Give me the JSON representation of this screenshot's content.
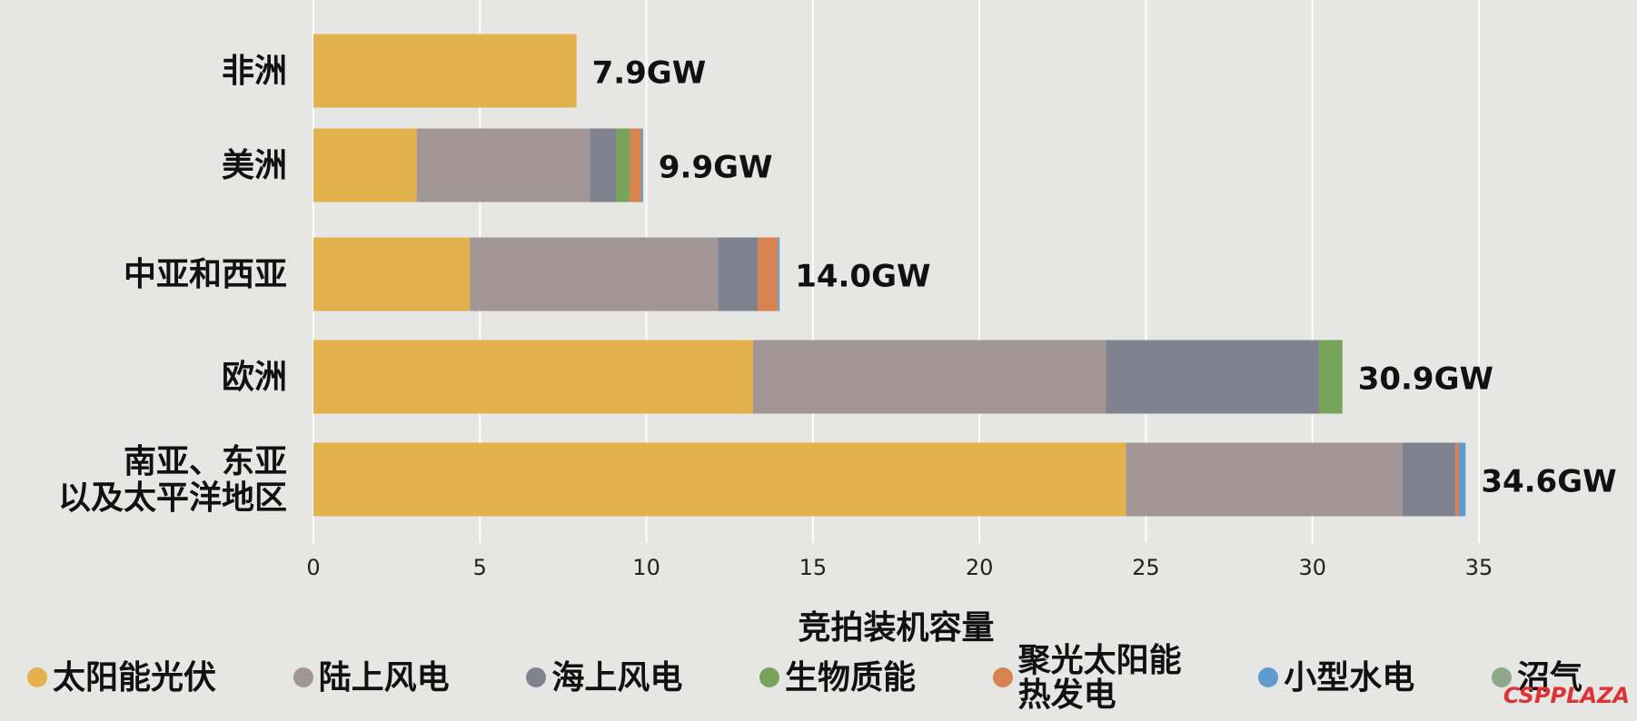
{
  "chart_data": {
    "type": "stacked-bar-horizontal",
    "categories": [
      "非洲",
      "美洲",
      "中亚和西亚",
      "欧洲",
      "南亚、东亚\n以及太平洋地区"
    ],
    "series": [
      {
        "name": "太阳能光伏",
        "color": "#e4b24c",
        "values": [
          7.9,
          3.1,
          4.7,
          13.2,
          24.4
        ]
      },
      {
        "name": "陆上风电",
        "color": "#a19695",
        "values": [
          0,
          5.2,
          7.45,
          10.6,
          8.3
        ]
      },
      {
        "name": "海上风电",
        "color": "#80828f",
        "values": [
          0,
          0.8,
          1.2,
          6.4,
          1.6
        ]
      },
      {
        "name": "生物质能",
        "color": "#78a35b",
        "values": [
          0,
          0.4,
          0,
          0.7,
          0
        ]
      },
      {
        "name": "聚光太阳能\n热发电",
        "color": "#d8834f",
        "values": [
          0,
          0.35,
          0.6,
          0,
          0.1
        ]
      },
      {
        "name": "小型水电",
        "color": "#5e9bd1",
        "values": [
          0,
          0.05,
          0.05,
          0,
          0.2
        ]
      },
      {
        "name": "沼气",
        "color": "#8ea989",
        "values": [
          0,
          0,
          0,
          0,
          0
        ]
      }
    ],
    "totals": [
      7.9,
      9.9,
      14.0,
      30.9,
      34.6
    ],
    "total_labels": [
      "7.9GW",
      "9.9GW",
      "14.0GW",
      "30.9GW",
      "34.6GW"
    ],
    "xlabel": "竞拍装机容量",
    "xlim": [
      0,
      35
    ],
    "xticks": [
      0,
      5,
      10,
      15,
      20,
      25,
      30,
      35
    ],
    "grid": true,
    "watermark": "CSPPLAZA"
  }
}
